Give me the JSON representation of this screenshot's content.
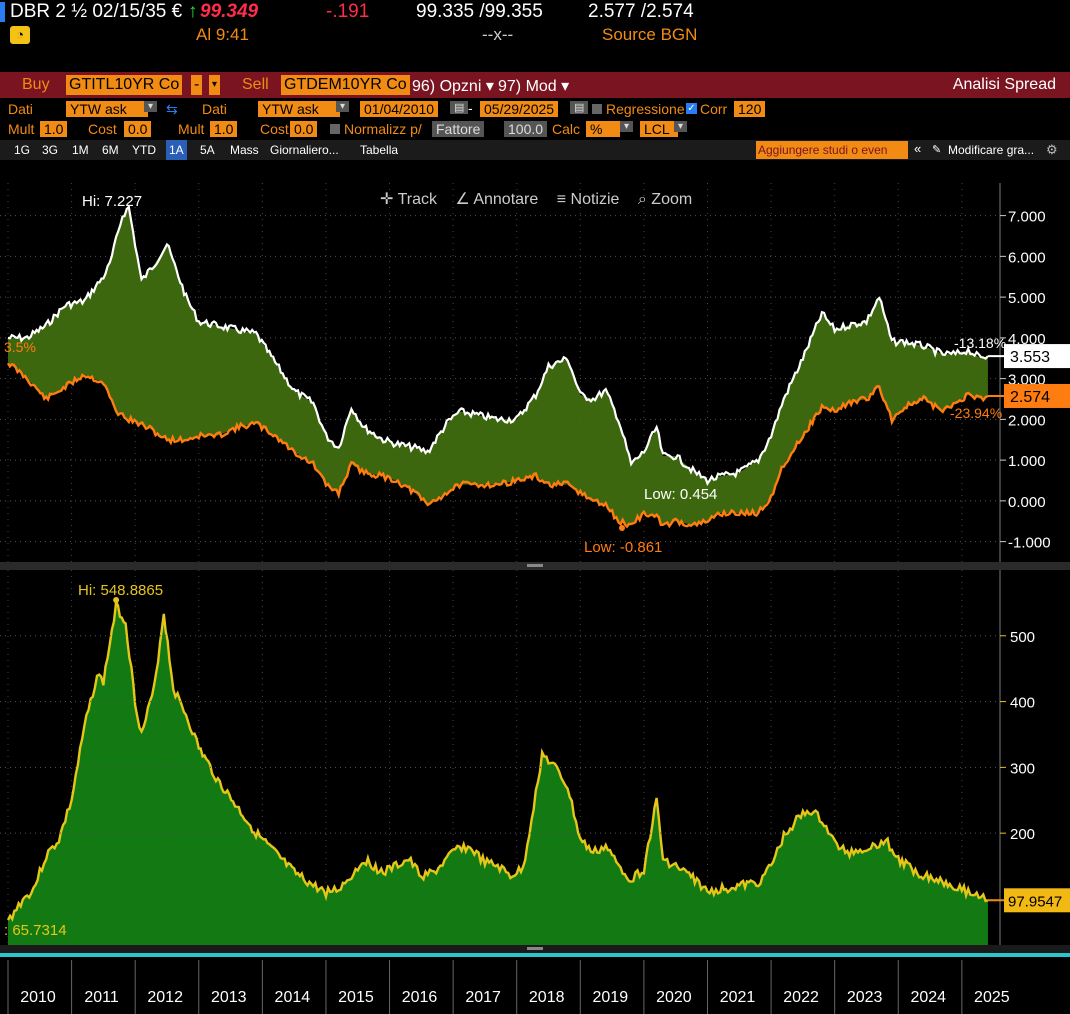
{
  "header": {
    "ticker": "DBR 2 ½ 02/15/35 €",
    "arrow": "↑",
    "price": "99.349",
    "change": "-.191",
    "bid_ask": "99.335 /99.355",
    "yields": "2.577 /2.574",
    "time_label": "Al 9:41",
    "spread_sep": "--x--",
    "source": "Source BGN"
  },
  "toolbar": {
    "buy_label": "Buy",
    "buy_security": "GTITL10YR Co",
    "sell_label": "Sell",
    "sell_security": "GTDEM10YR Co",
    "options_menu": "96) Opzni ▾",
    "mod_menu": "97) Mod ▾",
    "title": "Analisi Spread"
  },
  "settings": {
    "dati1_label": "Dati",
    "dati1_value": "YTW ask",
    "dati2_label": "Dati",
    "dati2_value": "YTW ask",
    "start_date": "01/04/2010",
    "dash": "-",
    "end_date": "05/29/2025",
    "regression_label": "Regressione",
    "corr_label": "Corr",
    "corr_value": "120",
    "mult1_label": "Mult",
    "mult1_value": "1.0",
    "cost1_label": "Cost",
    "cost1_value": "0.0",
    "mult2_label": "Mult",
    "mult2_value": "1.0",
    "cost2_label": "Cost",
    "cost2_value": "0.0",
    "normalize_label": "Normalizz p/",
    "normalize_value": "Fattore",
    "normalize_num": "100.0",
    "calc_label": "Calc",
    "calc_value": "%",
    "currency_value": "LCL"
  },
  "timeframes": [
    "1G",
    "3G",
    "1M",
    "6M",
    "YTD",
    "1A",
    "5A",
    "Mass",
    "Giornaliero...",
    "Tabella"
  ],
  "active_timeframe": "1A",
  "studies_placeholder": "Aggiungere studi o even",
  "modify_label": "Modificare gra...",
  "chart_tools": {
    "track": "Track",
    "annotate": "Annotare",
    "news": "Notizie",
    "zoom": "Zoom"
  },
  "chart_data": [
    {
      "type": "line",
      "x_labels": [
        "2010",
        "2011",
        "2012",
        "2013",
        "2014",
        "2015",
        "2016",
        "2017",
        "2018",
        "2019",
        "2020",
        "2021",
        "2022",
        "2023",
        "2024",
        "2025"
      ],
      "ylim": [
        -1.5,
        7.8
      ],
      "y_ticks": [
        "7.000",
        "6.000",
        "5.000",
        "4.000",
        "3.000",
        "2.000",
        "1.000",
        "0.000",
        "-1.000"
      ],
      "series": [
        {
          "name": "GTITL10YR Co",
          "color": "#ffffff",
          "x": [
            2010.0,
            2010.3,
            2010.6,
            2010.9,
            2011.2,
            2011.5,
            2011.6,
            2011.8,
            2011.9,
            2012.1,
            2012.3,
            2012.5,
            2012.8,
            2013.0,
            2013.3,
            2013.6,
            2013.9,
            2014.2,
            2014.5,
            2014.8,
            2015.0,
            2015.2,
            2015.4,
            2015.6,
            2015.9,
            2016.1,
            2016.4,
            2016.6,
            2016.9,
            2017.1,
            2017.4,
            2017.7,
            2018.0,
            2018.3,
            2018.5,
            2018.8,
            2019.0,
            2019.2,
            2019.4,
            2019.6,
            2019.8,
            2020.0,
            2020.2,
            2020.3,
            2020.5,
            2020.8,
            2021.0,
            2021.2,
            2021.5,
            2021.8,
            2022.0,
            2022.2,
            2022.5,
            2022.8,
            2023.0,
            2023.2,
            2023.5,
            2023.7,
            2023.9,
            2024.1,
            2024.4,
            2024.7,
            2024.9,
            2025.1,
            2025.3,
            2025.41
          ],
          "y": [
            4.0,
            4.0,
            4.3,
            4.8,
            4.9,
            5.5,
            5.8,
            7.0,
            7.2,
            5.4,
            5.8,
            6.3,
            5.0,
            4.4,
            4.3,
            4.2,
            4.1,
            3.4,
            2.7,
            2.4,
            1.6,
            1.3,
            2.3,
            1.8,
            1.5,
            1.4,
            1.3,
            1.2,
            1.9,
            2.2,
            2.1,
            2.0,
            2.0,
            2.6,
            3.3,
            3.5,
            2.6,
            2.5,
            2.7,
            2.0,
            0.9,
            1.2,
            1.8,
            1.1,
            1.1,
            0.7,
            0.5,
            0.6,
            0.7,
            1.0,
            1.6,
            2.5,
            3.5,
            4.6,
            4.2,
            4.3,
            4.4,
            5.0,
            3.9,
            3.9,
            3.8,
            3.6,
            3.6,
            3.7,
            3.5,
            3.553
          ]
        },
        {
          "name": "GTDEM10YR Co",
          "color": "#ff7d10",
          "x": [
            2010.0,
            2010.3,
            2010.6,
            2010.9,
            2011.2,
            2011.5,
            2011.7,
            2011.9,
            2012.2,
            2012.5,
            2012.8,
            2013.0,
            2013.3,
            2013.6,
            2013.9,
            2014.2,
            2014.5,
            2014.8,
            2015.0,
            2015.2,
            2015.4,
            2015.6,
            2015.9,
            2016.1,
            2016.4,
            2016.6,
            2016.9,
            2017.1,
            2017.4,
            2017.7,
            2018.0,
            2018.3,
            2018.5,
            2018.8,
            2019.0,
            2019.2,
            2019.4,
            2019.6,
            2019.8,
            2020.0,
            2020.2,
            2020.3,
            2020.5,
            2020.8,
            2021.0,
            2021.2,
            2021.5,
            2021.8,
            2022.0,
            2022.2,
            2022.5,
            2022.8,
            2023.0,
            2023.2,
            2023.5,
            2023.7,
            2023.9,
            2024.1,
            2024.4,
            2024.7,
            2024.9,
            2025.1,
            2025.3,
            2025.41
          ],
          "y": [
            3.4,
            3.0,
            2.5,
            2.8,
            3.1,
            2.9,
            2.2,
            2.0,
            1.8,
            1.5,
            1.5,
            1.6,
            1.6,
            1.8,
            1.9,
            1.6,
            1.2,
            0.9,
            0.4,
            0.2,
            0.9,
            0.7,
            0.6,
            0.5,
            0.2,
            -0.1,
            0.2,
            0.4,
            0.4,
            0.4,
            0.5,
            0.6,
            0.4,
            0.4,
            0.2,
            0.0,
            -0.1,
            -0.5,
            -0.6,
            -0.3,
            -0.4,
            -0.6,
            -0.5,
            -0.6,
            -0.5,
            -0.3,
            -0.3,
            -0.3,
            0.1,
            0.9,
            1.6,
            2.3,
            2.2,
            2.4,
            2.5,
            2.8,
            2.0,
            2.3,
            2.5,
            2.2,
            2.4,
            2.6,
            2.5,
            2.574
          ]
        }
      ],
      "annotations": [
        {
          "text": "Hi: 7.227"
        },
        {
          "text": "Low: 0.454"
        },
        {
          "text": "Low: -0.861"
        },
        {
          "text": "3.5%"
        }
      ],
      "right_labels": [
        {
          "value": "3.553",
          "pct": "-13.18%"
        },
        {
          "value": "2.574",
          "pct": "-23.94%"
        }
      ]
    },
    {
      "type": "area",
      "ylim": [
        30,
        600
      ],
      "y_ticks": [
        "500",
        "400",
        "300",
        "200"
      ],
      "series": [
        {
          "color": "#e6c619",
          "fill": "#137a13",
          "x": [
            2010.0,
            2010.2,
            2010.4,
            2010.6,
            2010.8,
            2011.0,
            2011.2,
            2011.4,
            2011.5,
            2011.7,
            2011.85,
            2012.0,
            2012.1,
            2012.3,
            2012.45,
            2012.6,
            2012.8,
            2013.0,
            2013.3,
            2013.6,
            2013.9,
            2014.2,
            2014.5,
            2014.8,
            2015.0,
            2015.2,
            2015.4,
            2015.6,
            2015.9,
            2016.1,
            2016.3,
            2016.5,
            2016.7,
            2016.9,
            2017.1,
            2017.3,
            2017.5,
            2017.7,
            2017.9,
            2018.1,
            2018.3,
            2018.4,
            2018.6,
            2018.8,
            2019.0,
            2019.2,
            2019.4,
            2019.6,
            2019.8,
            2020.0,
            2020.2,
            2020.3,
            2020.5,
            2020.8,
            2021.0,
            2021.2,
            2021.5,
            2021.8,
            2022.0,
            2022.2,
            2022.4,
            2022.6,
            2022.8,
            2023.0,
            2023.2,
            2023.4,
            2023.6,
            2023.8,
            2024.0,
            2024.3,
            2024.6,
            2024.9,
            2025.1,
            2025.3,
            2025.41
          ],
          "y": [
            65.7,
            95,
            115,
            165,
            190,
            250,
            360,
            440,
            430,
            545,
            520,
            400,
            350,
            420,
            535,
            420,
            380,
            330,
            280,
            240,
            200,
            170,
            140,
            120,
            110,
            115,
            135,
            160,
            140,
            150,
            160,
            135,
            140,
            160,
            180,
            175,
            155,
            150,
            135,
            145,
            260,
            320,
            300,
            270,
            190,
            170,
            180,
            150,
            130,
            145,
            250,
            160,
            150,
            130,
            110,
            115,
            120,
            125,
            150,
            195,
            220,
            235,
            220,
            185,
            170,
            175,
            180,
            190,
            160,
            140,
            130,
            120,
            110,
            105,
            97.9547
          ]
        }
      ],
      "annotations": [
        {
          "text": "Hi: 548.8865"
        },
        {
          "text": ": 65.7314"
        }
      ],
      "right_labels": [
        {
          "value": "97.9547"
        }
      ]
    }
  ]
}
